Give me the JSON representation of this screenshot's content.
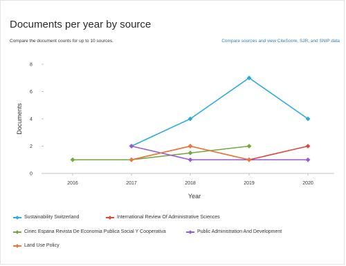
{
  "header": {
    "title": "Documents per year by source",
    "subtitle": "Compare the document counts for up to 10 sources.",
    "compare_link": "Compare sources and view CiteScore, SJR, and SNIP data"
  },
  "chart_data": {
    "type": "line",
    "title": "Documents per year by source",
    "xlabel": "Year",
    "ylabel": "Documents",
    "x": [
      2016,
      2017,
      2018,
      2019,
      2020
    ],
    "ylim": [
      0,
      8
    ],
    "yticks": [
      0,
      2,
      4,
      6,
      8
    ],
    "grid": false,
    "legend_position": "bottom",
    "series": [
      {
        "name": "Sustainability Switzerland",
        "color": "#29abe2",
        "values": [
          null,
          2,
          4,
          7,
          4
        ]
      },
      {
        "name": "International Review Of Administrative Sciences",
        "color": "#e0473c",
        "values": [
          null,
          1,
          2,
          1,
          2
        ]
      },
      {
        "name": "Ciriec Espana Revista De Economia Publica Social Y Cooperativa",
        "color": "#72a83c",
        "values": [
          1,
          1,
          1.5,
          2,
          null
        ]
      },
      {
        "name": "Public Administration And Development",
        "color": "#9b59d0",
        "values": [
          null,
          2,
          1,
          1,
          1
        ]
      },
      {
        "name": "Land Use Policy",
        "color": "#e8793a",
        "values": [
          null,
          1,
          2,
          1,
          null
        ]
      }
    ]
  }
}
